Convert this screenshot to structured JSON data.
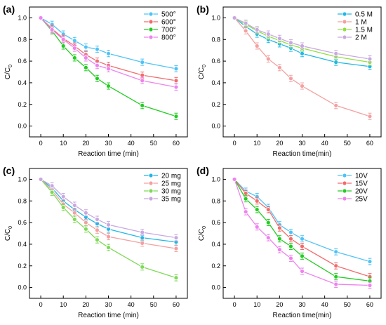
{
  "chart_data": [
    {
      "type": "line",
      "panel_label": "(a)",
      "xlabel": "Reaction time (min)",
      "ylabel": "C/C",
      "ylabel_sub": "0",
      "x": [
        0,
        5,
        10,
        15,
        20,
        25,
        30,
        45,
        60
      ],
      "xlim": [
        -5,
        65
      ],
      "ylim": [
        -0.1,
        1.1
      ],
      "xticks": [
        0,
        10,
        20,
        30,
        40,
        50,
        60
      ],
      "yticks": [
        0.0,
        0.2,
        0.4,
        0.6,
        0.8,
        1.0
      ],
      "grid": false,
      "legend_position": "top-right",
      "series": [
        {
          "name": "500°",
          "color": "#4fc3f7",
          "values": [
            1.0,
            0.94,
            0.85,
            0.79,
            0.73,
            0.71,
            0.67,
            0.59,
            0.53
          ]
        },
        {
          "name": "600°",
          "color": "#f26b6b",
          "values": [
            1.0,
            0.9,
            0.81,
            0.74,
            0.66,
            0.6,
            0.56,
            0.47,
            0.42
          ]
        },
        {
          "name": "700°",
          "color": "#22cc22",
          "values": [
            1.0,
            0.88,
            0.74,
            0.63,
            0.54,
            0.44,
            0.37,
            0.19,
            0.09
          ]
        },
        {
          "name": "800°",
          "color": "#ee82ee",
          "values": [
            1.0,
            0.89,
            0.8,
            0.72,
            0.63,
            0.56,
            0.53,
            0.42,
            0.36
          ]
        }
      ]
    },
    {
      "type": "line",
      "panel_label": "(b)",
      "xlabel": "Reaction time(min)",
      "ylabel": "C/C",
      "ylabel_sub": "0",
      "x": [
        0,
        5,
        10,
        15,
        20,
        25,
        30,
        45,
        60
      ],
      "xlim": [
        -5,
        65
      ],
      "ylim": [
        -0.1,
        1.1
      ],
      "xticks": [
        0,
        10,
        20,
        30,
        40,
        50,
        60
      ],
      "yticks": [
        0.0,
        0.2,
        0.4,
        0.6,
        0.8,
        1.0
      ],
      "grid": false,
      "legend_position": "top-right",
      "series": [
        {
          "name": "0.5 M",
          "color": "#1fb8e6",
          "values": [
            1.0,
            0.92,
            0.85,
            0.8,
            0.76,
            0.72,
            0.67,
            0.59,
            0.55
          ]
        },
        {
          "name": "1 M",
          "color": "#f4a0a0",
          "values": [
            1.0,
            0.88,
            0.74,
            0.62,
            0.54,
            0.44,
            0.37,
            0.19,
            0.09
          ]
        },
        {
          "name": "1.5 M",
          "color": "#90e040",
          "values": [
            1.0,
            0.94,
            0.88,
            0.83,
            0.79,
            0.75,
            0.72,
            0.64,
            0.59
          ]
        },
        {
          "name": "2 M",
          "color": "#c8a8e0",
          "values": [
            1.0,
            0.95,
            0.89,
            0.85,
            0.81,
            0.77,
            0.74,
            0.67,
            0.62
          ]
        }
      ]
    },
    {
      "type": "line",
      "panel_label": "(c)",
      "xlabel": "Reaction time (min)",
      "ylabel": "C/C",
      "ylabel_sub": "0",
      "x": [
        0,
        5,
        10,
        15,
        20,
        25,
        30,
        45,
        60
      ],
      "xlim": [
        -5,
        65
      ],
      "ylim": [
        -0.1,
        1.1
      ],
      "xticks": [
        0,
        10,
        20,
        30,
        40,
        50,
        60
      ],
      "yticks": [
        0.0,
        0.2,
        0.4,
        0.6,
        0.8,
        1.0
      ],
      "grid": false,
      "legend_position": "top-right",
      "series": [
        {
          "name": "20 mg",
          "color": "#1fb8e6",
          "values": [
            1.0,
            0.92,
            0.8,
            0.72,
            0.65,
            0.59,
            0.54,
            0.46,
            0.42
          ]
        },
        {
          "name": "25 mg",
          "color": "#f4a0a0",
          "values": [
            1.0,
            0.9,
            0.77,
            0.69,
            0.6,
            0.53,
            0.47,
            0.41,
            0.36
          ]
        },
        {
          "name": "30 mg",
          "color": "#7ed957",
          "values": [
            1.0,
            0.88,
            0.74,
            0.63,
            0.54,
            0.44,
            0.37,
            0.19,
            0.09
          ]
        },
        {
          "name": "35 mg",
          "color": "#c8a8e0",
          "values": [
            1.0,
            0.94,
            0.84,
            0.76,
            0.69,
            0.63,
            0.58,
            0.51,
            0.46
          ]
        }
      ]
    },
    {
      "type": "line",
      "panel_label": "(d)",
      "xlabel": "Reaction time(min)",
      "ylabel": "C/C",
      "ylabel_sub": "0",
      "x": [
        0,
        5,
        10,
        15,
        20,
        25,
        30,
        45,
        60
      ],
      "xlim": [
        -5,
        65
      ],
      "ylim": [
        -0.1,
        1.1
      ],
      "xticks": [
        0,
        10,
        20,
        30,
        40,
        50,
        60
      ],
      "yticks": [
        0.0,
        0.2,
        0.4,
        0.6,
        0.8,
        1.0
      ],
      "grid": false,
      "legend_position": "top-right",
      "series": [
        {
          "name": "10V",
          "color": "#4fc3f7",
          "values": [
            1.0,
            0.89,
            0.84,
            0.74,
            0.58,
            0.51,
            0.45,
            0.33,
            0.24
          ]
        },
        {
          "name": "15V",
          "color": "#f26b6b",
          "values": [
            1.0,
            0.87,
            0.8,
            0.72,
            0.55,
            0.45,
            0.38,
            0.2,
            0.1
          ]
        },
        {
          "name": "20V",
          "color": "#22cc22",
          "values": [
            1.0,
            0.82,
            0.72,
            0.6,
            0.45,
            0.38,
            0.29,
            0.1,
            0.06
          ]
        },
        {
          "name": "25V",
          "color": "#ee82ee",
          "values": [
            1.0,
            0.7,
            0.56,
            0.46,
            0.35,
            0.27,
            0.15,
            0.03,
            0.02
          ]
        }
      ]
    }
  ]
}
